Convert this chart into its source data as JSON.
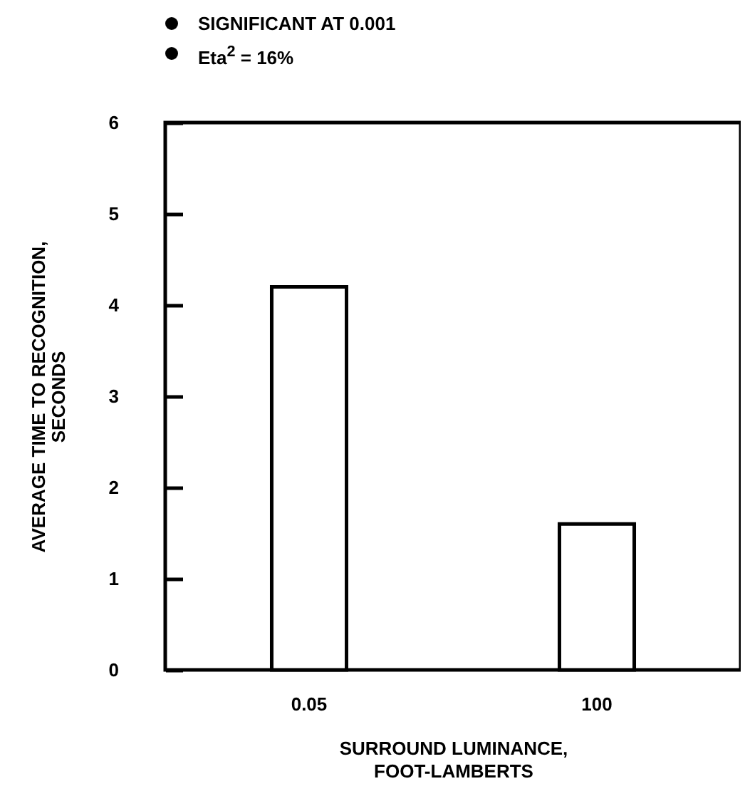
{
  "chart_data": {
    "type": "bar",
    "categories": [
      "0.05",
      "100"
    ],
    "values": [
      4.2,
      1.6
    ],
    "color": "#ffffff",
    "xlabel": "SURROUND LUMINANCE,\nFOOT-LAMBERTS",
    "ylabel": "AVERAGE TIME TO RECOGNITION,\nSECONDS",
    "ylim": [
      0,
      6
    ],
    "yticks": [
      0,
      1,
      2,
      3,
      4,
      5,
      6
    ],
    "grid": false,
    "annotations": [
      "SIGNIFICANT AT 0.001",
      "Eta$^{2}$ = 16%"
    ]
  }
}
